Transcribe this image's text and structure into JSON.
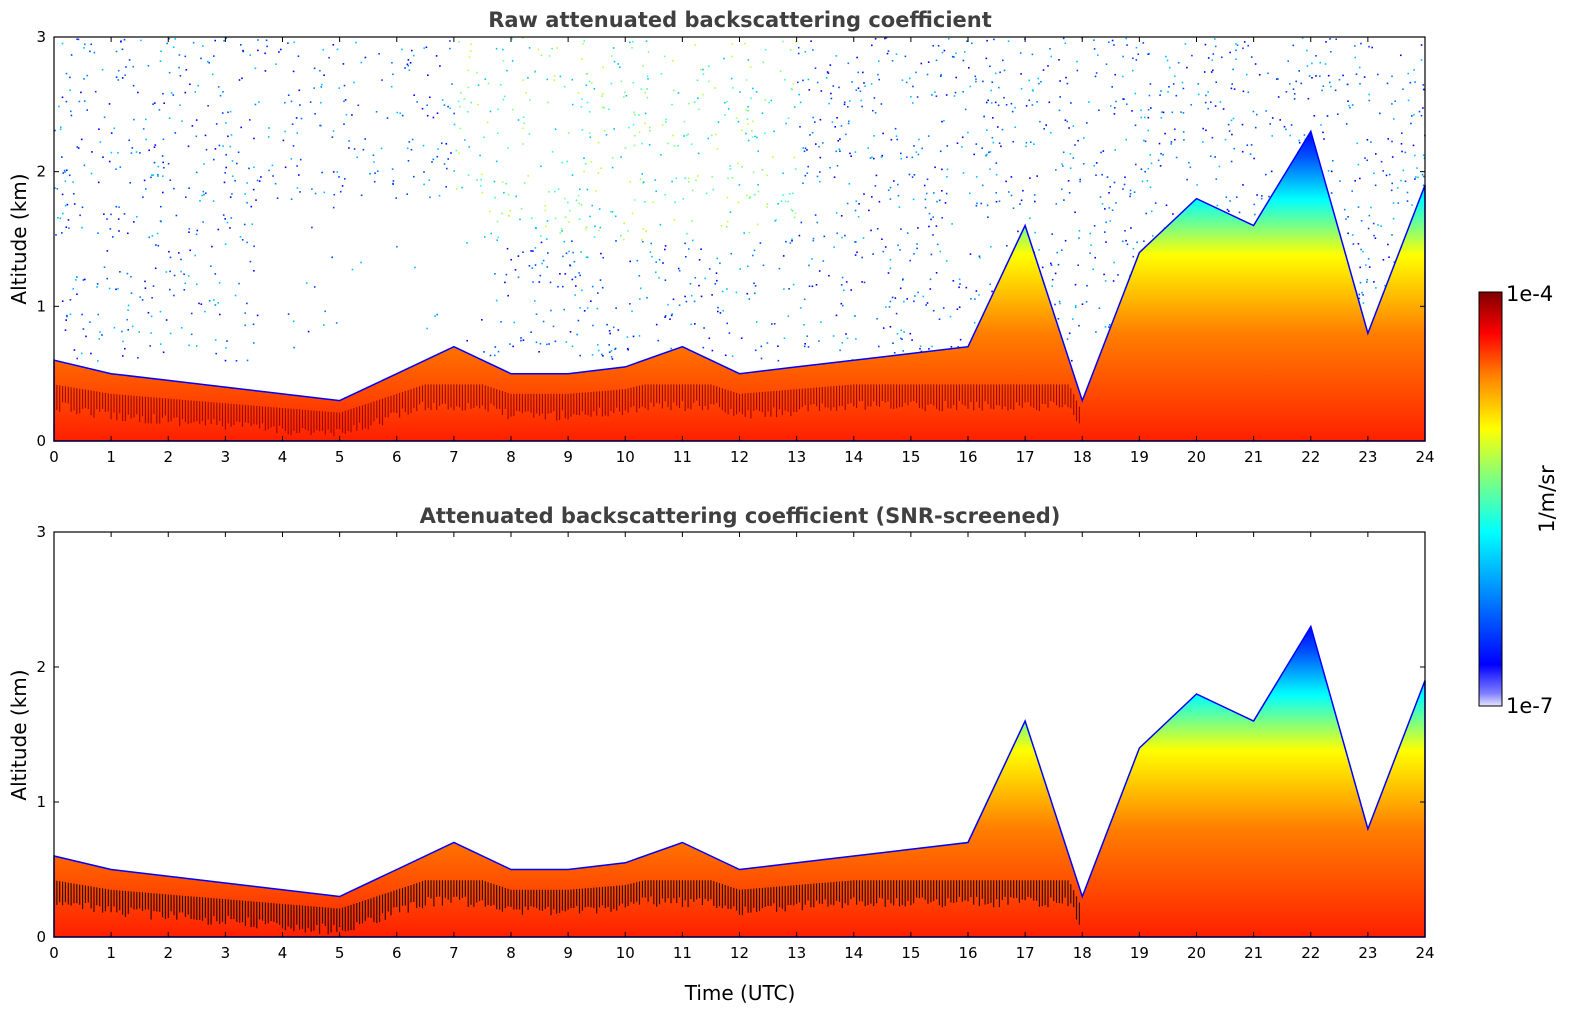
{
  "chart_data": [
    {
      "type": "heatmap",
      "title": "Raw attenuated backscattering coefficient",
      "xlabel": "",
      "ylabel": "Altitude (km)",
      "xlim": [
        0,
        24
      ],
      "ylim": [
        0,
        3
      ],
      "xticks": [
        "0",
        "1",
        "2",
        "3",
        "4",
        "5",
        "6",
        "7",
        "8",
        "9",
        "10",
        "11",
        "12",
        "13",
        "14",
        "15",
        "16",
        "17",
        "18",
        "19",
        "20",
        "21",
        "22",
        "23",
        "24"
      ],
      "yticks": [
        "0",
        "1",
        "2",
        "3"
      ],
      "colormap": "jet",
      "log_scale": true,
      "noise_background": true,
      "boundary_layer_top_km": [
        [
          0,
          0.6
        ],
        [
          1,
          0.5
        ],
        [
          2,
          0.45
        ],
        [
          3,
          0.4
        ],
        [
          4,
          0.35
        ],
        [
          5,
          0.3
        ],
        [
          6,
          0.5
        ],
        [
          7,
          0.7
        ],
        [
          8,
          0.5
        ],
        [
          9,
          0.5
        ],
        [
          10,
          0.55
        ],
        [
          11,
          0.7
        ],
        [
          12,
          0.5
        ],
        [
          13,
          0.55
        ],
        [
          14,
          0.6
        ],
        [
          15,
          0.65
        ],
        [
          16,
          0.7
        ],
        [
          17,
          1.6
        ],
        [
          18,
          0.3
        ],
        [
          19,
          1.4
        ],
        [
          20,
          1.8
        ],
        [
          21,
          1.6
        ],
        [
          22,
          2.3
        ],
        [
          23,
          0.8
        ],
        [
          24,
          1.9
        ]
      ]
    },
    {
      "type": "heatmap",
      "title": "Attenuated backscattering coefficient (SNR-screened)",
      "xlabel": "Time (UTC)",
      "ylabel": "Altitude (km)",
      "xlim": [
        0,
        24
      ],
      "ylim": [
        0,
        3
      ],
      "xticks": [
        "0",
        "1",
        "2",
        "3",
        "4",
        "5",
        "6",
        "7",
        "8",
        "9",
        "10",
        "11",
        "12",
        "13",
        "14",
        "15",
        "16",
        "17",
        "18",
        "19",
        "20",
        "21",
        "22",
        "23",
        "24"
      ],
      "yticks": [
        "0",
        "1",
        "2",
        "3"
      ],
      "colormap": "jet",
      "log_scale": true,
      "noise_background": false,
      "boundary_layer_top_km": [
        [
          0,
          0.6
        ],
        [
          1,
          0.5
        ],
        [
          2,
          0.45
        ],
        [
          3,
          0.4
        ],
        [
          4,
          0.35
        ],
        [
          5,
          0.3
        ],
        [
          6,
          0.5
        ],
        [
          7,
          0.7
        ],
        [
          8,
          0.5
        ],
        [
          9,
          0.5
        ],
        [
          10,
          0.55
        ],
        [
          11,
          0.7
        ],
        [
          12,
          0.5
        ],
        [
          13,
          0.55
        ],
        [
          14,
          0.6
        ],
        [
          15,
          0.65
        ],
        [
          16,
          0.7
        ],
        [
          17,
          1.6
        ],
        [
          18,
          0.3
        ],
        [
          19,
          1.4
        ],
        [
          20,
          1.8
        ],
        [
          21,
          1.6
        ],
        [
          22,
          2.3
        ],
        [
          23,
          0.8
        ],
        [
          24,
          1.9
        ]
      ]
    }
  ],
  "colorbar": {
    "label": "1/m/sr",
    "max_label": "1e-4",
    "min_label": "1e-7",
    "colors": [
      "#00007f",
      "#0000ff",
      "#007fff",
      "#00ffff",
      "#7fff7f",
      "#ffff00",
      "#ff7f00",
      "#ff0000",
      "#7f0000"
    ]
  }
}
